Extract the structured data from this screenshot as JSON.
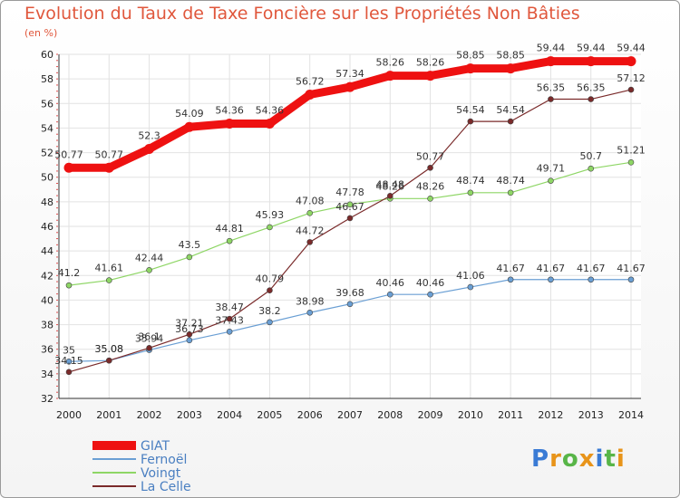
{
  "title": "Evolution du Taux de Taxe Foncière sur les Propriétés Non Bâties",
  "unit": "(en %)",
  "logo": {
    "letters": [
      "P",
      "r",
      "o",
      "x",
      "i",
      "t",
      "i"
    ],
    "colors": [
      "#3a7bd5",
      "#e8941a",
      "#58b548",
      "#e8941a",
      "#3a7bd5",
      "#58b548",
      "#e8941a"
    ]
  },
  "chart_data": {
    "type": "line",
    "x": [
      "2000",
      "2001",
      "2002",
      "2003",
      "2004",
      "2005",
      "2006",
      "2007",
      "2008",
      "2009",
      "2010",
      "2011",
      "2012",
      "2013",
      "2014"
    ],
    "ylim": [
      32,
      60
    ],
    "yticks": [
      "32",
      "34",
      "36",
      "38",
      "40",
      "42",
      "44",
      "46",
      "48",
      "50",
      "52",
      "54",
      "56",
      "58",
      "60"
    ],
    "grid": true,
    "legend_position": "bottom-left",
    "series": [
      {
        "name": "GIAT",
        "color": "#ee1111",
        "values": [
          50.77,
          50.77,
          52.3,
          54.09,
          54.36,
          54.36,
          56.72,
          57.34,
          58.26,
          58.26,
          58.85,
          58.85,
          59.44,
          59.44,
          59.44
        ],
        "labels": [
          "50.77",
          "50.77",
          "52.3",
          "54.09",
          "54.36",
          "54.36",
          "56.72",
          "57.34",
          "58.26",
          "58.26",
          "58.85",
          "58.85",
          "59.44",
          "59.44",
          "59.44"
        ]
      },
      {
        "name": "Fernoël",
        "color": "#6a9fd4",
        "values": [
          35,
          35.08,
          35.94,
          36.73,
          37.43,
          38.2,
          38.98,
          39.68,
          40.46,
          40.46,
          41.06,
          41.67,
          41.67,
          41.67,
          41.67
        ],
        "labels": [
          "35",
          "35.08",
          "35.94",
          "36.73",
          "37.43",
          "38.2",
          "38.98",
          "39.68",
          "40.46",
          "40.46",
          "41.06",
          "41.67",
          "41.67",
          "41.67",
          "41.67"
        ]
      },
      {
        "name": "Voingt",
        "color": "#8ed665",
        "values": [
          41.2,
          41.61,
          42.44,
          43.5,
          44.81,
          45.93,
          47.08,
          47.78,
          48.26,
          48.26,
          48.74,
          48.74,
          49.71,
          50.7,
          51.21
        ],
        "labels": [
          "41.2",
          "41.61",
          "42.44",
          "43.5",
          "44.81",
          "45.93",
          "47.08",
          "47.78",
          "48.26",
          "48.26",
          "48.74",
          "48.74",
          "49.71",
          "50.7",
          "51.21"
        ]
      },
      {
        "name": "La Celle",
        "color": "#7a2a2a",
        "values": [
          34.15,
          35.08,
          36.1,
          37.21,
          38.47,
          40.79,
          44.72,
          46.67,
          48.48,
          50.77,
          54.54,
          54.54,
          56.35,
          56.35,
          57.12
        ],
        "labels": [
          "34.15",
          "35.08",
          "36.1",
          "37.21",
          "38.47",
          "40.79",
          "44.72",
          "46.67",
          "48.48",
          "50.77",
          "54.54",
          "54.54",
          "56.35",
          "56.35",
          "57.12"
        ]
      }
    ]
  }
}
